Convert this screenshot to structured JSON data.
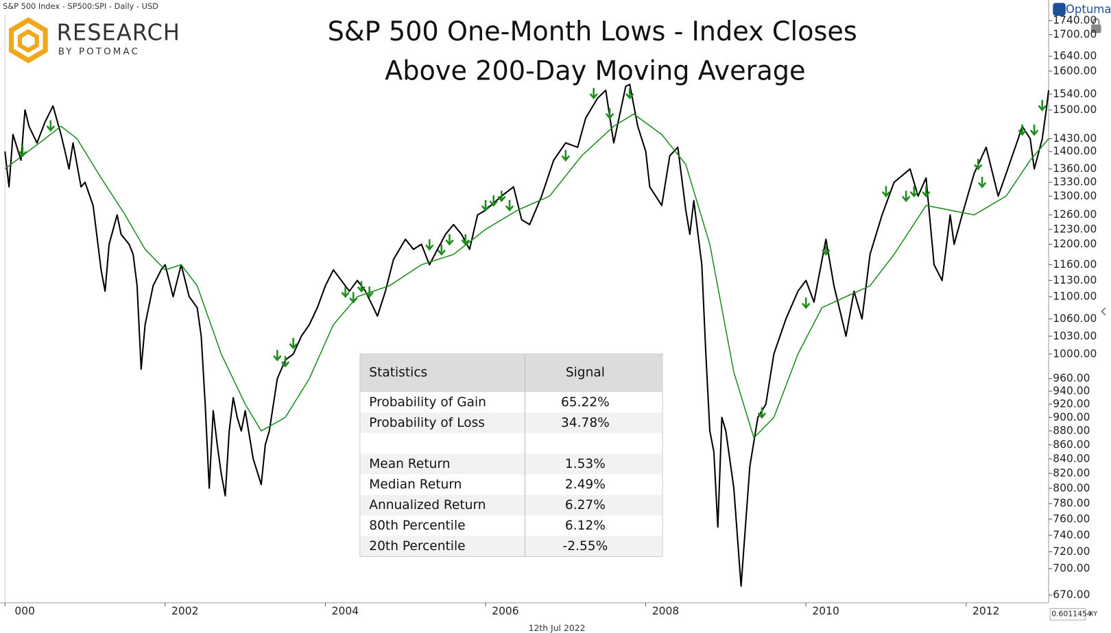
{
  "header": {
    "symbol_line": "S&P 500 Index  -  SP500:SPI - Daily - USD",
    "brand": "RESEARCH",
    "brand_sub": "BY POTOMAC",
    "vendor": "Optuma",
    "date": "12th Jul 2022",
    "cursor_value": "0.6011454",
    "cursor_mode": "XY"
  },
  "chart_data": {
    "type": "line",
    "title": [
      "S&P 500 One-Month Lows - Index Closes",
      "Above 200-Day Moving Average"
    ],
    "log_scale": true,
    "xlim": [
      2000,
      2013.03
    ],
    "xticks": [
      {
        "value": 2000,
        "label": "000"
      },
      2002,
      2004,
      2006,
      2008,
      2010,
      2012
    ],
    "ylim": [
      663,
      1754
    ],
    "yticks": [
      {
        "value": 1740,
        "label": "1740.00"
      },
      {
        "value": 1700,
        "label": "1700.00"
      },
      {
        "value": 1640,
        "label": "1640.00"
      },
      {
        "value": 1600,
        "label": "1600.00"
      },
      {
        "value": 1540,
        "label": "1540.00"
      },
      {
        "value": 1500,
        "label": "1500.00"
      },
      {
        "value": 1430,
        "label": "1430.00"
      },
      {
        "value": 1400,
        "label": "1400.00"
      },
      {
        "value": 1360,
        "label": "1360.00"
      },
      {
        "value": 1330,
        "label": "1330.00"
      },
      {
        "value": 1300,
        "label": "1300.00"
      },
      {
        "value": 1260,
        "label": "1260.00"
      },
      {
        "value": 1230,
        "label": "1230.00"
      },
      {
        "value": 1200,
        "label": "1200.00"
      },
      {
        "value": 1160,
        "label": "1160.00"
      },
      {
        "value": 1130,
        "label": "1130.00"
      },
      {
        "value": 1100,
        "label": "1100.00"
      },
      {
        "value": 1060,
        "label": "1060.00"
      },
      {
        "value": 1030,
        "label": "1030.00"
      },
      {
        "value": 1000,
        "label": "1000.00"
      },
      {
        "value": 960,
        "label": "960.00"
      },
      {
        "value": 940,
        "label": "940.00"
      },
      {
        "value": 920,
        "label": "920.00"
      },
      {
        "value": 900,
        "label": "900.00"
      },
      {
        "value": 880,
        "label": "880.00"
      },
      {
        "value": 860,
        "label": "860.00"
      },
      {
        "value": 840,
        "label": "840.00"
      },
      {
        "value": 820,
        "label": "820.00"
      },
      {
        "value": 800,
        "label": "800.00"
      },
      {
        "value": 780,
        "label": "780.00"
      },
      {
        "value": 760,
        "label": "760.00"
      },
      {
        "value": 740,
        "label": "740.00"
      },
      {
        "value": 720,
        "label": "720.00"
      },
      {
        "value": 700,
        "label": "700.00"
      },
      {
        "value": 670,
        "label": "670.00"
      }
    ],
    "series": [
      {
        "color": "#000000",
        "width": 2,
        "x": [
          2000.0,
          2000.05,
          2000.1,
          2000.2,
          2000.25,
          2000.3,
          2000.4,
          2000.5,
          2000.6,
          2000.7,
          2000.75,
          2000.8,
          2000.85,
          2000.95,
          2001.0,
          2001.1,
          2001.2,
          2001.25,
          2001.3,
          2001.4,
          2001.45,
          2001.55,
          2001.6,
          2001.65,
          2001.7,
          2001.75,
          2001.85,
          2001.95,
          2002.0,
          2002.1,
          2002.2,
          2002.3,
          2002.4,
          2002.45,
          2002.5,
          2002.55,
          2002.6,
          2002.65,
          2002.7,
          2002.75,
          2002.8,
          2002.85,
          2002.9,
          2002.95,
          2003.0,
          2003.1,
          2003.2,
          2003.25,
          2003.3,
          2003.4,
          2003.5,
          2003.6,
          2003.7,
          2003.8,
          2003.9,
          2004.0,
          2004.1,
          2004.15,
          2004.3,
          2004.4,
          2004.5,
          2004.6,
          2004.65,
          2004.75,
          2004.85,
          2005.0,
          2005.1,
          2005.2,
          2005.3,
          2005.4,
          2005.5,
          2005.6,
          2005.7,
          2005.8,
          2005.9,
          2006.0,
          2006.2,
          2006.35,
          2006.45,
          2006.55,
          2006.7,
          2006.85,
          2007.0,
          2007.15,
          2007.25,
          2007.4,
          2007.5,
          2007.6,
          2007.75,
          2007.8,
          2007.9,
          2008.0,
          2008.05,
          2008.2,
          2008.3,
          2008.4,
          2008.5,
          2008.55,
          2008.6,
          2008.7,
          2008.75,
          2008.8,
          2008.85,
          2008.9,
          2008.95,
          2009.0,
          2009.1,
          2009.19,
          2009.3,
          2009.4,
          2009.5,
          2009.6,
          2009.75,
          2009.9,
          2010.0,
          2010.1,
          2010.25,
          2010.35,
          2010.45,
          2010.5,
          2010.6,
          2010.7,
          2010.8,
          2010.95,
          2011.1,
          2011.3,
          2011.4,
          2011.5,
          2011.6,
          2011.7,
          2011.8,
          2011.85,
          2011.95,
          2012.1,
          2012.25,
          2012.4,
          2012.5,
          2012.65,
          2012.7,
          2012.8,
          2012.85,
          2012.95,
          2013.0,
          2013.03
        ],
        "values": [
          1400,
          1320,
          1440,
          1380,
          1500,
          1460,
          1420,
          1470,
          1510,
          1440,
          1400,
          1360,
          1420,
          1320,
          1330,
          1280,
          1150,
          1110,
          1200,
          1260,
          1220,
          1200,
          1180,
          1120,
          975,
          1050,
          1120,
          1150,
          1160,
          1100,
          1160,
          1100,
          1080,
          1030,
          920,
          800,
          910,
          860,
          820,
          790,
          880,
          930,
          900,
          880,
          910,
          840,
          805,
          860,
          880,
          960,
          990,
          1000,
          1030,
          1050,
          1080,
          1120,
          1150,
          1140,
          1110,
          1130,
          1110,
          1080,
          1065,
          1110,
          1170,
          1210,
          1190,
          1200,
          1160,
          1190,
          1220,
          1240,
          1220,
          1190,
          1260,
          1270,
          1300,
          1320,
          1250,
          1240,
          1300,
          1380,
          1420,
          1410,
          1480,
          1530,
          1550,
          1420,
          1560,
          1565,
          1460,
          1400,
          1320,
          1280,
          1390,
          1410,
          1270,
          1220,
          1290,
          1160,
          1000,
          880,
          850,
          750,
          900,
          880,
          800,
          680,
          830,
          900,
          920,
          1000,
          1060,
          1110,
          1130,
          1090,
          1210,
          1120,
          1060,
          1030,
          1110,
          1060,
          1180,
          1260,
          1330,
          1360,
          1300,
          1340,
          1160,
          1130,
          1260,
          1200,
          1260,
          1350,
          1410,
          1300,
          1350,
          1430,
          1460,
          1430,
          1360,
          1430,
          1500,
          1550
        ]
      },
      {
        "color": "#1e8c1e",
        "width": 1.5,
        "x": [
          2000.0,
          2000.5,
          2000.7,
          2000.9,
          2001.2,
          2001.5,
          2001.75,
          2002.0,
          2002.2,
          2002.4,
          2002.7,
          2003.0,
          2003.2,
          2003.5,
          2003.8,
          2004.1,
          2004.4,
          2004.8,
          2005.2,
          2005.6,
          2006.0,
          2006.4,
          2006.8,
          2007.2,
          2007.6,
          2007.85,
          2008.2,
          2008.5,
          2008.8,
          2009.1,
          2009.35,
          2009.6,
          2009.9,
          2010.2,
          2010.5,
          2010.8,
          2011.1,
          2011.5,
          2011.8,
          2012.1,
          2012.5,
          2012.8,
          2013.03
        ],
        "values": [
          1360,
          1430,
          1460,
          1430,
          1340,
          1260,
          1190,
          1150,
          1160,
          1120,
          1000,
          920,
          880,
          900,
          960,
          1050,
          1100,
          1120,
          1160,
          1180,
          1230,
          1270,
          1300,
          1390,
          1460,
          1490,
          1440,
          1370,
          1200,
          970,
          870,
          900,
          1000,
          1080,
          1100,
          1120,
          1180,
          1280,
          1270,
          1260,
          1300,
          1380,
          1430
        ]
      }
    ],
    "signals": {
      "color": "#1e8c1e",
      "x": [
        2000.22,
        2000.57,
        2003.4,
        2003.5,
        2003.6,
        2004.25,
        2004.35,
        2004.45,
        2004.55,
        2005.3,
        2005.45,
        2005.55,
        2005.75,
        2006.0,
        2006.1,
        2006.2,
        2006.3,
        2007.0,
        2007.35,
        2007.55,
        2007.8,
        2009.45,
        2010.0,
        2010.25,
        2011.0,
        2011.25,
        2011.35,
        2011.5,
        2012.15,
        2012.2,
        2012.7,
        2012.85,
        2012.95
      ],
      "values": [
        1390,
        1450,
        990,
        980,
        1010,
        1100,
        1090,
        1110,
        1100,
        1190,
        1180,
        1200,
        1200,
        1270,
        1280,
        1290,
        1270,
        1380,
        1530,
        1480,
        1530,
        900,
        1080,
        1180,
        1300,
        1290,
        1300,
        1300,
        1360,
        1320,
        1440,
        1440,
        1500
      ]
    }
  },
  "table": {
    "header": [
      "Statistics",
      "Signal"
    ],
    "rows": [
      [
        "Probability of Gain",
        "65.22%"
      ],
      [
        "Probability of Loss",
        "34.78%"
      ],
      [
        "Mean Return",
        "1.53%"
      ],
      [
        "Median Return",
        "2.49%"
      ],
      [
        "Annualized Return",
        "6.27%"
      ],
      [
        "80th Percentile",
        "6.12%"
      ],
      [
        "20th Percentile",
        "-2.55%"
      ]
    ]
  }
}
